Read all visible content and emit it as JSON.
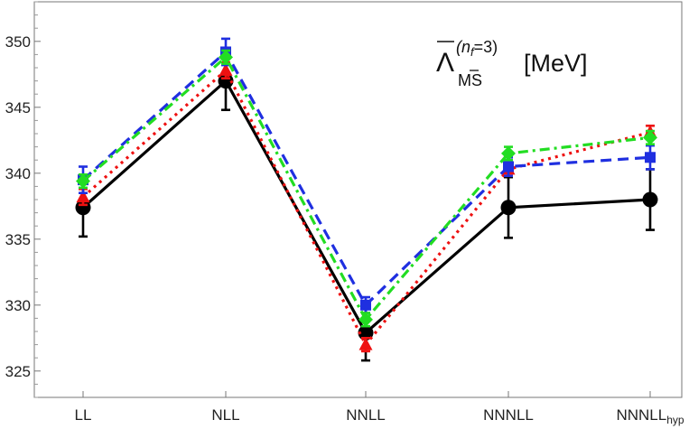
{
  "chart_data": {
    "type": "line",
    "title": {
      "main": "Λ",
      "superscript_prefix": "(n",
      "superscript_sub": "f",
      "superscript_suffix": "=3)",
      "subscript": "MS",
      "unit": "[MeV]"
    },
    "categories": [
      "LL",
      "NLL",
      "NNLL",
      "NNNLL",
      "NNNLL"
    ],
    "category_subscripts": [
      "",
      "",
      "",
      "",
      "hyp"
    ],
    "ylim": [
      323,
      353
    ],
    "yticks": [
      325,
      330,
      335,
      340,
      345,
      350
    ],
    "grid": false,
    "series": [
      {
        "color": "#000000",
        "marker": "circle",
        "dash": "solid",
        "values": [
          337.4,
          347.0,
          327.9,
          337.4,
          338.0
        ],
        "err": [
          2.2,
          2.2,
          2.1,
          2.3,
          2.3
        ]
      },
      {
        "color": "#1f2fe0",
        "marker": "square",
        "dash": "dashed",
        "values": [
          339.5,
          349.2,
          330.0,
          340.5,
          341.2
        ],
        "err": [
          1.0,
          1.0,
          0.6,
          0.7,
          0.9
        ]
      },
      {
        "color": "#ee1111",
        "marker": "triangle",
        "dash": "dotted",
        "values": [
          338.2,
          347.8,
          327.0,
          340.3,
          343.1
        ],
        "err": [
          0.6,
          0.6,
          0.5,
          0.5,
          0.5
        ]
      },
      {
        "color": "#22dd22",
        "marker": "diamond",
        "dash": "dashdot",
        "values": [
          339.4,
          348.8,
          328.9,
          341.5,
          342.7
        ],
        "err": [
          0.5,
          0.5,
          0.5,
          0.5,
          0.5
        ]
      }
    ]
  }
}
